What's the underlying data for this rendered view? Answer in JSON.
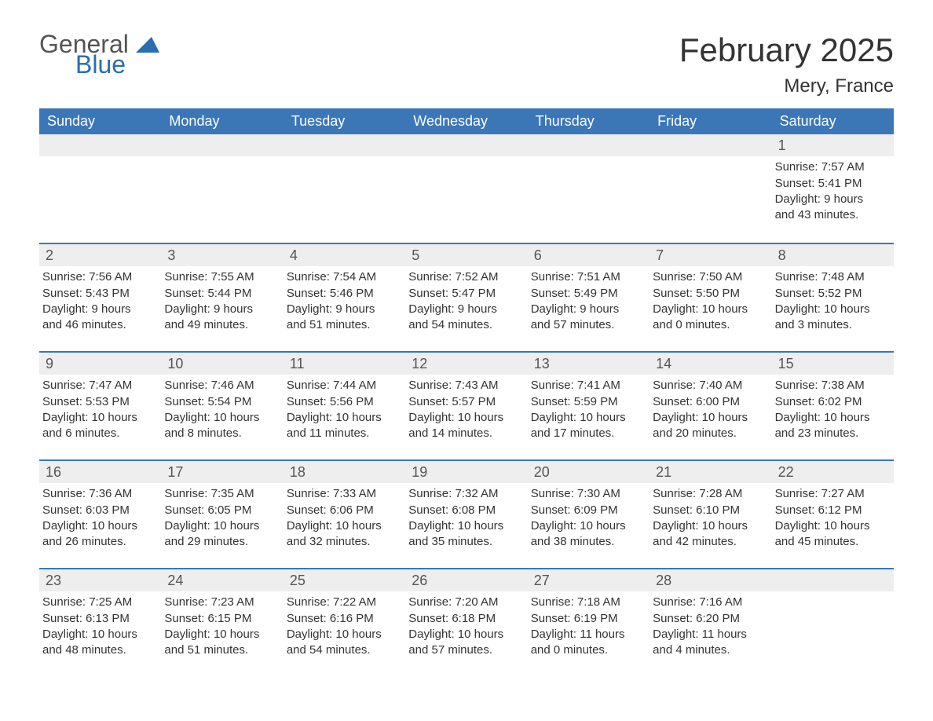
{
  "logo": {
    "text1": "General",
    "text2": "Blue",
    "accent_color": "#2a6db0"
  },
  "title": "February 2025",
  "location": "Mery, France",
  "colors": {
    "header_bg": "#3b77b7",
    "header_text": "#ffffff",
    "row_stripe": "#eeeeee",
    "border": "#3b77b7",
    "body_text": "#333333",
    "background": "#ffffff"
  },
  "fonts": {
    "title_size": 42,
    "location_size": 24,
    "header_size": 18,
    "body_size": 15
  },
  "day_names": [
    "Sunday",
    "Monday",
    "Tuesday",
    "Wednesday",
    "Thursday",
    "Friday",
    "Saturday"
  ],
  "weeks": [
    [
      null,
      null,
      null,
      null,
      null,
      null,
      {
        "day": "1",
        "sunrise": "Sunrise: 7:57 AM",
        "sunset": "Sunset: 5:41 PM",
        "daylight1": "Daylight: 9 hours",
        "daylight2": "and 43 minutes."
      }
    ],
    [
      {
        "day": "2",
        "sunrise": "Sunrise: 7:56 AM",
        "sunset": "Sunset: 5:43 PM",
        "daylight1": "Daylight: 9 hours",
        "daylight2": "and 46 minutes."
      },
      {
        "day": "3",
        "sunrise": "Sunrise: 7:55 AM",
        "sunset": "Sunset: 5:44 PM",
        "daylight1": "Daylight: 9 hours",
        "daylight2": "and 49 minutes."
      },
      {
        "day": "4",
        "sunrise": "Sunrise: 7:54 AM",
        "sunset": "Sunset: 5:46 PM",
        "daylight1": "Daylight: 9 hours",
        "daylight2": "and 51 minutes."
      },
      {
        "day": "5",
        "sunrise": "Sunrise: 7:52 AM",
        "sunset": "Sunset: 5:47 PM",
        "daylight1": "Daylight: 9 hours",
        "daylight2": "and 54 minutes."
      },
      {
        "day": "6",
        "sunrise": "Sunrise: 7:51 AM",
        "sunset": "Sunset: 5:49 PM",
        "daylight1": "Daylight: 9 hours",
        "daylight2": "and 57 minutes."
      },
      {
        "day": "7",
        "sunrise": "Sunrise: 7:50 AM",
        "sunset": "Sunset: 5:50 PM",
        "daylight1": "Daylight: 10 hours",
        "daylight2": "and 0 minutes."
      },
      {
        "day": "8",
        "sunrise": "Sunrise: 7:48 AM",
        "sunset": "Sunset: 5:52 PM",
        "daylight1": "Daylight: 10 hours",
        "daylight2": "and 3 minutes."
      }
    ],
    [
      {
        "day": "9",
        "sunrise": "Sunrise: 7:47 AM",
        "sunset": "Sunset: 5:53 PM",
        "daylight1": "Daylight: 10 hours",
        "daylight2": "and 6 minutes."
      },
      {
        "day": "10",
        "sunrise": "Sunrise: 7:46 AM",
        "sunset": "Sunset: 5:54 PM",
        "daylight1": "Daylight: 10 hours",
        "daylight2": "and 8 minutes."
      },
      {
        "day": "11",
        "sunrise": "Sunrise: 7:44 AM",
        "sunset": "Sunset: 5:56 PM",
        "daylight1": "Daylight: 10 hours",
        "daylight2": "and 11 minutes."
      },
      {
        "day": "12",
        "sunrise": "Sunrise: 7:43 AM",
        "sunset": "Sunset: 5:57 PM",
        "daylight1": "Daylight: 10 hours",
        "daylight2": "and 14 minutes."
      },
      {
        "day": "13",
        "sunrise": "Sunrise: 7:41 AM",
        "sunset": "Sunset: 5:59 PM",
        "daylight1": "Daylight: 10 hours",
        "daylight2": "and 17 minutes."
      },
      {
        "day": "14",
        "sunrise": "Sunrise: 7:40 AM",
        "sunset": "Sunset: 6:00 PM",
        "daylight1": "Daylight: 10 hours",
        "daylight2": "and 20 minutes."
      },
      {
        "day": "15",
        "sunrise": "Sunrise: 7:38 AM",
        "sunset": "Sunset: 6:02 PM",
        "daylight1": "Daylight: 10 hours",
        "daylight2": "and 23 minutes."
      }
    ],
    [
      {
        "day": "16",
        "sunrise": "Sunrise: 7:36 AM",
        "sunset": "Sunset: 6:03 PM",
        "daylight1": "Daylight: 10 hours",
        "daylight2": "and 26 minutes."
      },
      {
        "day": "17",
        "sunrise": "Sunrise: 7:35 AM",
        "sunset": "Sunset: 6:05 PM",
        "daylight1": "Daylight: 10 hours",
        "daylight2": "and 29 minutes."
      },
      {
        "day": "18",
        "sunrise": "Sunrise: 7:33 AM",
        "sunset": "Sunset: 6:06 PM",
        "daylight1": "Daylight: 10 hours",
        "daylight2": "and 32 minutes."
      },
      {
        "day": "19",
        "sunrise": "Sunrise: 7:32 AM",
        "sunset": "Sunset: 6:08 PM",
        "daylight1": "Daylight: 10 hours",
        "daylight2": "and 35 minutes."
      },
      {
        "day": "20",
        "sunrise": "Sunrise: 7:30 AM",
        "sunset": "Sunset: 6:09 PM",
        "daylight1": "Daylight: 10 hours",
        "daylight2": "and 38 minutes."
      },
      {
        "day": "21",
        "sunrise": "Sunrise: 7:28 AM",
        "sunset": "Sunset: 6:10 PM",
        "daylight1": "Daylight: 10 hours",
        "daylight2": "and 42 minutes."
      },
      {
        "day": "22",
        "sunrise": "Sunrise: 7:27 AM",
        "sunset": "Sunset: 6:12 PM",
        "daylight1": "Daylight: 10 hours",
        "daylight2": "and 45 minutes."
      }
    ],
    [
      {
        "day": "23",
        "sunrise": "Sunrise: 7:25 AM",
        "sunset": "Sunset: 6:13 PM",
        "daylight1": "Daylight: 10 hours",
        "daylight2": "and 48 minutes."
      },
      {
        "day": "24",
        "sunrise": "Sunrise: 7:23 AM",
        "sunset": "Sunset: 6:15 PM",
        "daylight1": "Daylight: 10 hours",
        "daylight2": "and 51 minutes."
      },
      {
        "day": "25",
        "sunrise": "Sunrise: 7:22 AM",
        "sunset": "Sunset: 6:16 PM",
        "daylight1": "Daylight: 10 hours",
        "daylight2": "and 54 minutes."
      },
      {
        "day": "26",
        "sunrise": "Sunrise: 7:20 AM",
        "sunset": "Sunset: 6:18 PM",
        "daylight1": "Daylight: 10 hours",
        "daylight2": "and 57 minutes."
      },
      {
        "day": "27",
        "sunrise": "Sunrise: 7:18 AM",
        "sunset": "Sunset: 6:19 PM",
        "daylight1": "Daylight: 11 hours",
        "daylight2": "and 0 minutes."
      },
      {
        "day": "28",
        "sunrise": "Sunrise: 7:16 AM",
        "sunset": "Sunset: 6:20 PM",
        "daylight1": "Daylight: 11 hours",
        "daylight2": "and 4 minutes."
      },
      null
    ]
  ]
}
